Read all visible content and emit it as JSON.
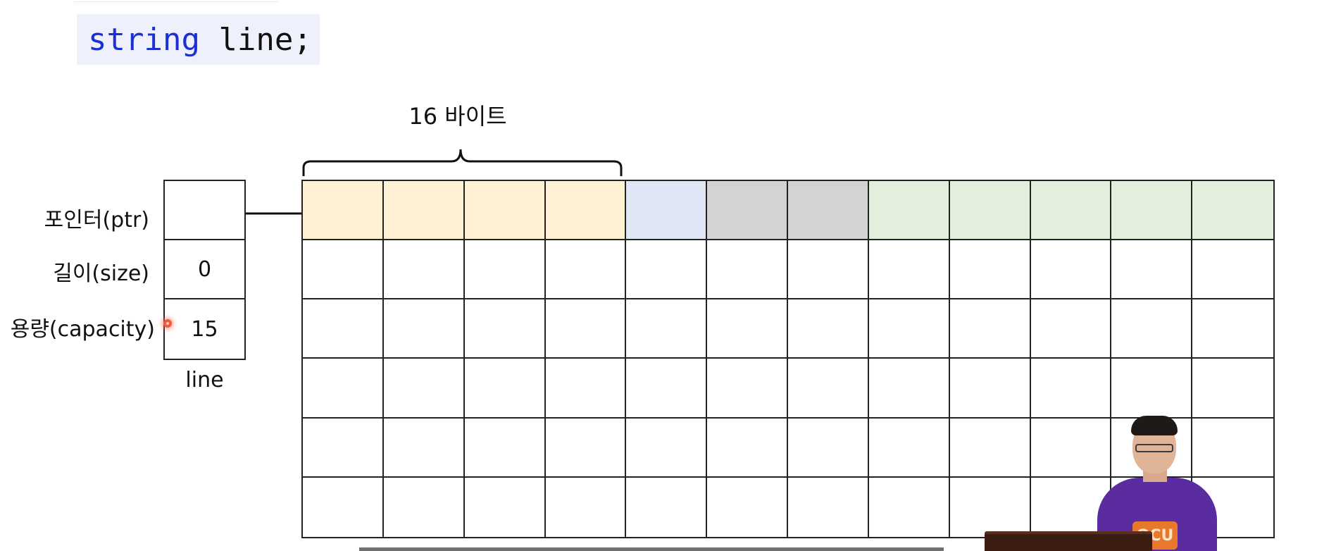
{
  "code": {
    "keyword": "string",
    "rest": " line;"
  },
  "brace_label": "16 바이트",
  "struct": {
    "fields": [
      {
        "label": "포인터(ptr)",
        "value": ""
      },
      {
        "label": "길이(size)",
        "value": "0"
      },
      {
        "label": "용량(capacity)",
        "value": "15"
      }
    ],
    "var_name": "line"
  },
  "memory": {
    "columns": 12,
    "rows": 6,
    "first_row_colors": [
      "#fff2d2",
      "#fff2d2",
      "#fff2d2",
      "#fff2d2",
      "#dfe7f6",
      "#d4d3d3",
      "#d4d3d3",
      "#e3efdd",
      "#e3efdd",
      "#e3efdd",
      "#e3efdd",
      "#e3efdd"
    ],
    "cell_color": "#ffffff"
  },
  "presenter": {
    "shirt_logo": "OCU"
  },
  "colors": {
    "keyword": "#1a2fd6",
    "code_bg": "#eef0fb"
  }
}
